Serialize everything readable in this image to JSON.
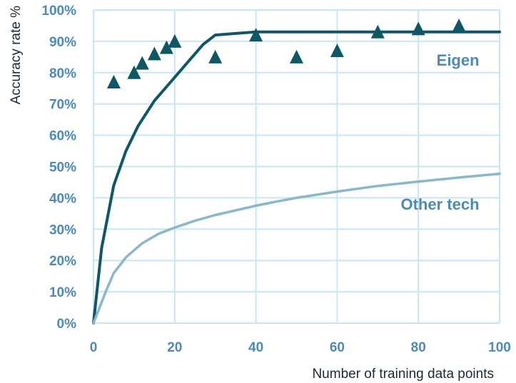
{
  "chart_data": {
    "type": "line",
    "xlabel": "Number of training data points",
    "ylabel": "Accuracy rate %",
    "xlim": [
      0,
      100
    ],
    "ylim": [
      0,
      100
    ],
    "x_ticks": [
      0,
      20,
      40,
      60,
      80,
      100
    ],
    "y_ticks": [
      0,
      10,
      20,
      30,
      40,
      50,
      60,
      70,
      80,
      90,
      100
    ],
    "y_tick_suffix": "%",
    "grid": true,
    "series": [
      {
        "name": "Eigen",
        "kind": "line",
        "color": "#0e5764",
        "x": [
          0,
          2,
          5,
          8,
          11,
          15,
          19,
          23,
          27,
          30,
          35,
          40,
          50,
          60,
          70,
          80,
          90,
          100
        ],
        "y": [
          0,
          24,
          44,
          55,
          63,
          71,
          77,
          83,
          89,
          92,
          92.5,
          93,
          93,
          93,
          93,
          93,
          93,
          93
        ]
      },
      {
        "name": "Other tech",
        "kind": "line",
        "color": "#8ab8c8",
        "x": [
          0,
          3,
          5,
          8,
          12,
          16,
          20,
          25,
          30,
          35,
          40,
          45,
          50,
          55,
          60,
          70,
          80,
          90,
          100
        ],
        "y": [
          0,
          10,
          16,
          21,
          25.5,
          28.5,
          30.5,
          32.7,
          34.5,
          36,
          37.5,
          38.8,
          40,
          41,
          42,
          43.8,
          45.2,
          46.5,
          47.7
        ]
      },
      {
        "name": "",
        "kind": "scatter",
        "marker": "triangle",
        "color": "#0e5764",
        "x": [
          5,
          10,
          12,
          15,
          18,
          20,
          30,
          40,
          50,
          60,
          70,
          80,
          90
        ],
        "y": [
          77,
          80,
          83,
          86,
          88,
          90,
          85,
          92,
          85,
          87,
          93,
          94,
          95
        ]
      }
    ],
    "annotations": [
      {
        "text": "Eigen",
        "x": 95,
        "y": 84,
        "color": "#4d8bb5",
        "anchor": "end"
      },
      {
        "text": "Other tech",
        "x": 95,
        "y": 38,
        "color": "#4d8bb5",
        "anchor": "end"
      }
    ]
  }
}
